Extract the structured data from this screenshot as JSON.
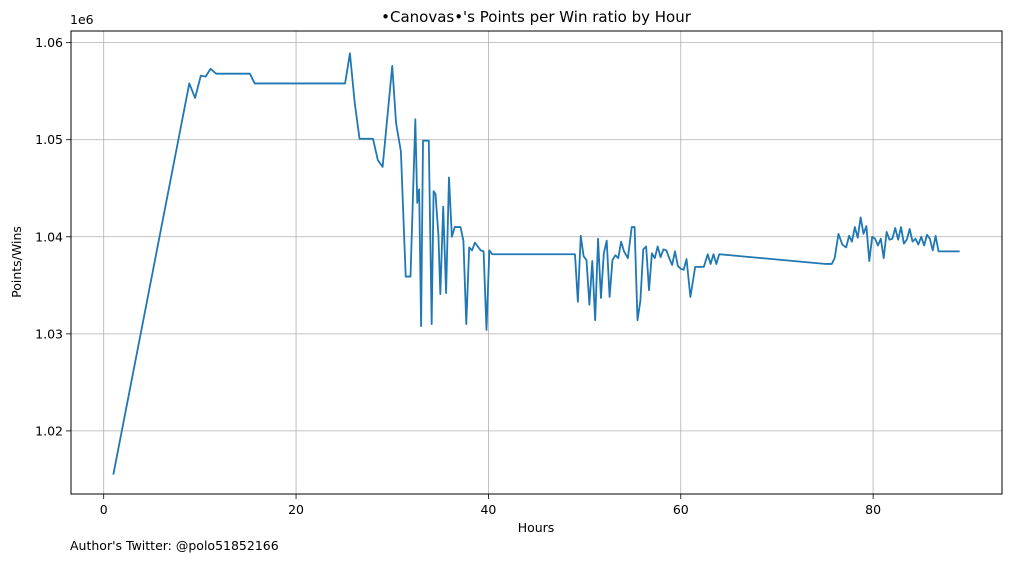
{
  "chart_data": {
    "type": "line",
    "title": "•Canovas•'s Points per Win ratio by Hour",
    "xlabel": "Hours",
    "ylabel": "Points/Wins",
    "y_offset_label": "1e6",
    "xlim": [
      -3.4,
      93.4
    ],
    "ylim": [
      1.0135,
      1.0612
    ],
    "x_ticks": [
      0,
      20,
      40,
      60,
      80
    ],
    "y_ticks": [
      1.02,
      1.03,
      1.04,
      1.05,
      1.06
    ],
    "x_tick_labels": [
      "0",
      "20",
      "40",
      "60",
      "80"
    ],
    "y_tick_labels": [
      "1.02",
      "1.03",
      "1.04",
      "1.05",
      "1.06"
    ],
    "grid": true,
    "color": "#1f77b4",
    "series": [
      {
        "x": [
          1.0,
          8.9,
          9.5,
          10.1,
          10.6,
          11.1,
          11.7,
          15.2,
          15.7,
          25.1,
          25.6,
          26.1,
          26.6,
          27.1,
          28.0,
          28.5,
          29.0,
          29.5,
          30.0,
          30.4,
          30.9,
          31.4,
          31.9,
          32.4,
          32.6,
          32.8,
          33.0,
          33.2,
          33.5,
          33.8,
          34.1,
          34.3,
          34.5,
          34.8,
          35.0,
          35.3,
          35.6,
          35.9,
          36.2,
          36.5,
          36.8,
          37.1,
          37.4,
          37.7,
          38.0,
          38.3,
          38.6,
          38.9,
          39.2,
          39.5,
          39.8,
          40.1,
          40.4,
          40.7,
          41.0,
          49.0,
          49.3,
          49.6,
          49.9,
          50.2,
          50.5,
          50.8,
          51.1,
          51.4,
          51.7,
          52.0,
          52.3,
          52.6,
          52.9,
          53.2,
          53.5,
          53.8,
          54.1,
          54.5,
          54.9,
          55.2,
          55.5,
          55.8,
          56.1,
          56.4,
          56.7,
          57.0,
          57.3,
          57.6,
          57.9,
          58.2,
          58.5,
          58.8,
          59.1,
          59.4,
          59.7,
          60.0,
          60.3,
          60.6,
          61.0,
          61.5,
          62.0,
          62.4,
          62.8,
          63.1,
          63.4,
          63.7,
          64.0,
          75.1,
          75.4,
          75.7,
          76.0,
          76.4,
          76.8,
          77.2,
          77.5,
          77.8,
          78.1,
          78.4,
          78.7,
          79.0,
          79.3,
          79.6,
          79.9,
          80.2,
          80.5,
          80.8,
          81.1,
          81.4,
          81.7,
          82.0,
          82.3,
          82.6,
          82.9,
          83.2,
          83.5,
          83.8,
          84.1,
          84.4,
          84.7,
          85.0,
          85.3,
          85.6,
          85.9,
          86.2,
          86.5,
          86.8,
          87.1,
          89.0
        ],
        "y": [
          1.0155,
          1.0558,
          1.0543,
          1.0566,
          1.0565,
          1.0573,
          1.0568,
          1.0568,
          1.0558,
          1.0558,
          1.0589,
          1.0538,
          1.0501,
          1.0501,
          1.0501,
          1.0479,
          1.0472,
          1.0524,
          1.0576,
          1.0517,
          1.0488,
          1.0359,
          1.0359,
          1.0521,
          1.0435,
          1.0449,
          1.0308,
          1.0499,
          1.0499,
          1.0499,
          1.031,
          1.0447,
          1.0444,
          1.0402,
          1.0341,
          1.0431,
          1.0342,
          1.0461,
          1.04,
          1.041,
          1.041,
          1.041,
          1.0396,
          1.031,
          1.0389,
          1.0386,
          1.0394,
          1.039,
          1.0386,
          1.0385,
          1.0304,
          1.0386,
          1.0382,
          1.0382,
          1.0382,
          1.0382,
          1.0333,
          1.0401,
          1.038,
          1.0376,
          1.033,
          1.0375,
          1.0314,
          1.0398,
          1.0337,
          1.0383,
          1.0396,
          1.0338,
          1.0376,
          1.0381,
          1.0378,
          1.0395,
          1.0385,
          1.0378,
          1.041,
          1.041,
          1.0314,
          1.0334,
          1.0387,
          1.039,
          1.0345,
          1.0383,
          1.0378,
          1.039,
          1.0379,
          1.0387,
          1.0386,
          1.0378,
          1.0371,
          1.0385,
          1.037,
          1.0367,
          1.0366,
          1.0377,
          1.0338,
          1.0369,
          1.0369,
          1.0369,
          1.0382,
          1.0372,
          1.0382,
          1.0372,
          1.0382,
          1.0372,
          1.0372,
          1.0372,
          1.0378,
          1.0403,
          1.0392,
          1.0389,
          1.0401,
          1.0395,
          1.041,
          1.0399,
          1.042,
          1.0403,
          1.0411,
          1.0375,
          1.04,
          1.0398,
          1.0391,
          1.0398,
          1.0378,
          1.0405,
          1.0397,
          1.0398,
          1.0409,
          1.0397,
          1.041,
          1.0393,
          1.0397,
          1.0408,
          1.0395,
          1.0398,
          1.0392,
          1.04,
          1.0391,
          1.0402,
          1.0398,
          1.0386,
          1.0401,
          1.0385,
          1.0385,
          1.0385
        ]
      }
    ]
  },
  "footer": {
    "credit": "Author's Twitter: @polo51852166"
  }
}
